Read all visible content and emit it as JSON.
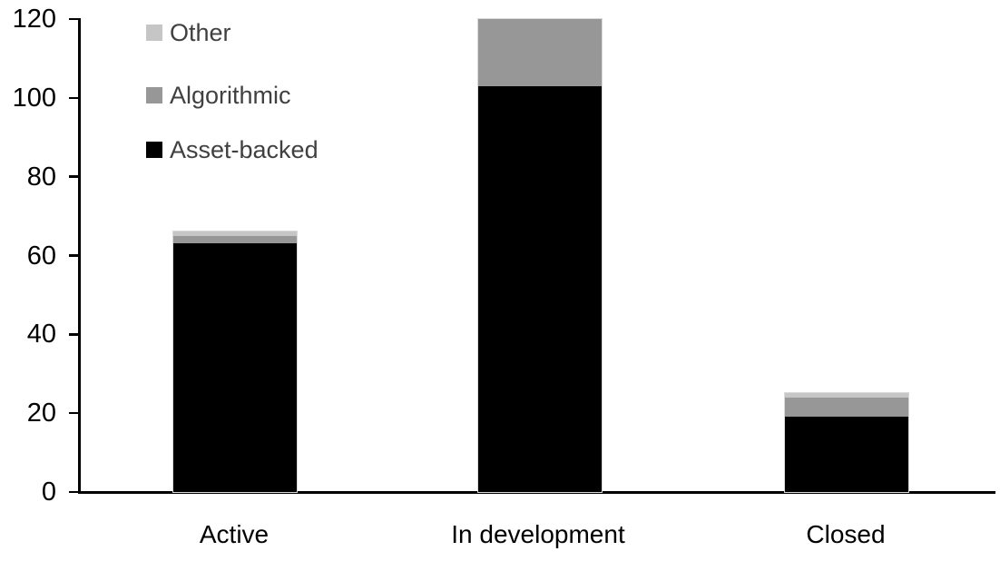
{
  "chart_data": {
    "type": "bar",
    "stacked": true,
    "title": "",
    "xlabel": "",
    "ylabel": "",
    "categories": [
      "Active",
      "In development",
      "Closed"
    ],
    "series": [
      {
        "name": "Asset-backed",
        "color": "#000000",
        "values": [
          63,
          103,
          19
        ]
      },
      {
        "name": "Algorithmic",
        "color": "#979797",
        "values": [
          2,
          17,
          5
        ]
      },
      {
        "name": "Other",
        "color": "#c6c6c6",
        "values": [
          1,
          0,
          1
        ]
      }
    ],
    "ylim": [
      0,
      120
    ],
    "yticks": [
      0,
      20,
      40,
      60,
      80,
      100,
      120
    ],
    "grid": false,
    "legend_position": "top-left",
    "legend_order": [
      "Other",
      "Algorithmic",
      "Asset-backed"
    ]
  },
  "legend": {
    "items": [
      {
        "label": "Other",
        "color": "#c6c6c6"
      },
      {
        "label": "Algorithmic",
        "color": "#979797"
      },
      {
        "label": "Asset-backed",
        "color": "#000000"
      }
    ]
  },
  "x_axis": {
    "labels": [
      "Active",
      "In development",
      "Closed"
    ]
  },
  "y_axis": {
    "tick_labels": [
      "0",
      "20",
      "40",
      "60",
      "80",
      "100",
      "120"
    ]
  },
  "colors": {
    "background": "#ffffff",
    "axis": "#000000",
    "tick_label_text": "#000000",
    "category_label_text": "#000000",
    "legend_text": "#404040",
    "bar_edge": "#d9d9d9"
  }
}
